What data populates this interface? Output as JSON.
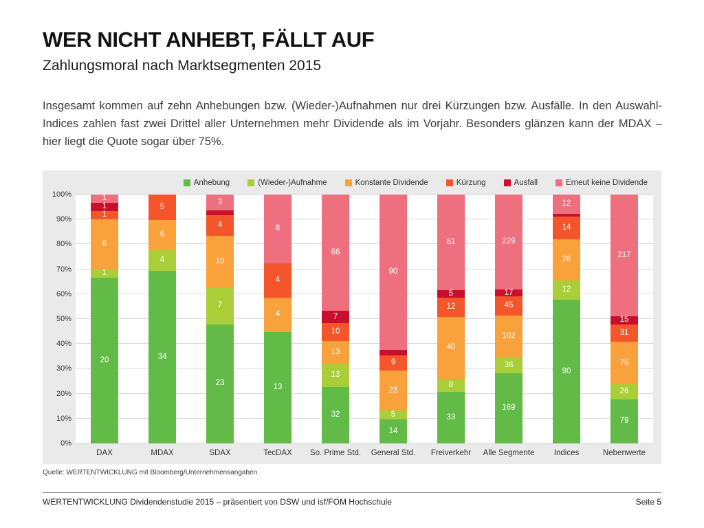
{
  "page": {
    "title": "WER NICHT ANHEBT, FÄLLT AUF",
    "subtitle": "Zahlungsmoral nach Marktsegmenten 2015",
    "paragraph": "Insgesamt kommen auf zehn Anhebungen bzw. (Wieder-)Aufnahmen nur drei Kürzungen bzw. Ausfälle. In den Auswahl-Indices zahlen fast zwei Drittel aller Unternehmen mehr Dividende als im Vorjahr. Besonders glänzen kann der MDAX – hier liegt die Quote sogar über 75%.",
    "source": "Quelle: WERTENTWICKLUNG mit Bloomberg/Unternehmensangaben.",
    "footer": {
      "left": "WERTENTWICKLUNG Dividendenstudie 2015 – präsentiert von DSW und isf/FOM Hochschule",
      "right": "Seite 5"
    }
  },
  "chart_data": {
    "type": "bar",
    "variant": "stacked-100-percent",
    "title": "",
    "xlabel": "",
    "ylabel": "",
    "ylim": [
      0,
      100
    ],
    "grid": "horizontal",
    "legend_position": "top-right",
    "panel_bg": "#eaeaea",
    "plot_bg": "#ffffff",
    "grid_color": "#d8d8d8",
    "value_label_color": "#ffffff",
    "value_label_min_pct": 2.5,
    "y_ticks": [
      "0%",
      "10%",
      "20%",
      "30%",
      "40%",
      "50%",
      "60%",
      "70%",
      "80%",
      "90%",
      "100%"
    ],
    "categories": [
      "DAX",
      "MDAX",
      "SDAX",
      "TecDAX",
      "So. Prime Std.",
      "General Std.",
      "Freiverkehr",
      "Alle Segmente",
      "Indices",
      "Nebenwerte"
    ],
    "series": [
      {
        "name": "Anhebung",
        "color": "#62bb46",
        "values": [
          20,
          34,
          23,
          13,
          32,
          14,
          33,
          169,
          90,
          79
        ]
      },
      {
        "name": "(Wieder-)Aufnahme",
        "color": "#a9ce38",
        "values": [
          1,
          4,
          7,
          0,
          13,
          5,
          8,
          38,
          12,
          26
        ]
      },
      {
        "name": "Konstante Dividende",
        "color": "#f9a13b",
        "values": [
          6,
          6,
          10,
          4,
          13,
          23,
          40,
          102,
          26,
          76
        ]
      },
      {
        "name": "Kürzung",
        "color": "#f4552b",
        "values": [
          1,
          5,
          4,
          4,
          10,
          9,
          12,
          45,
          14,
          31
        ]
      },
      {
        "name": "Ausfall",
        "color": "#c8102e",
        "values": [
          1,
          0,
          1,
          0,
          7,
          3,
          5,
          17,
          2,
          15
        ]
      },
      {
        "name": "Erneut keine Dividende",
        "color": "#ee707f",
        "values": [
          1,
          0,
          3,
          8,
          66,
          90,
          61,
          229,
          12,
          217
        ]
      }
    ]
  }
}
